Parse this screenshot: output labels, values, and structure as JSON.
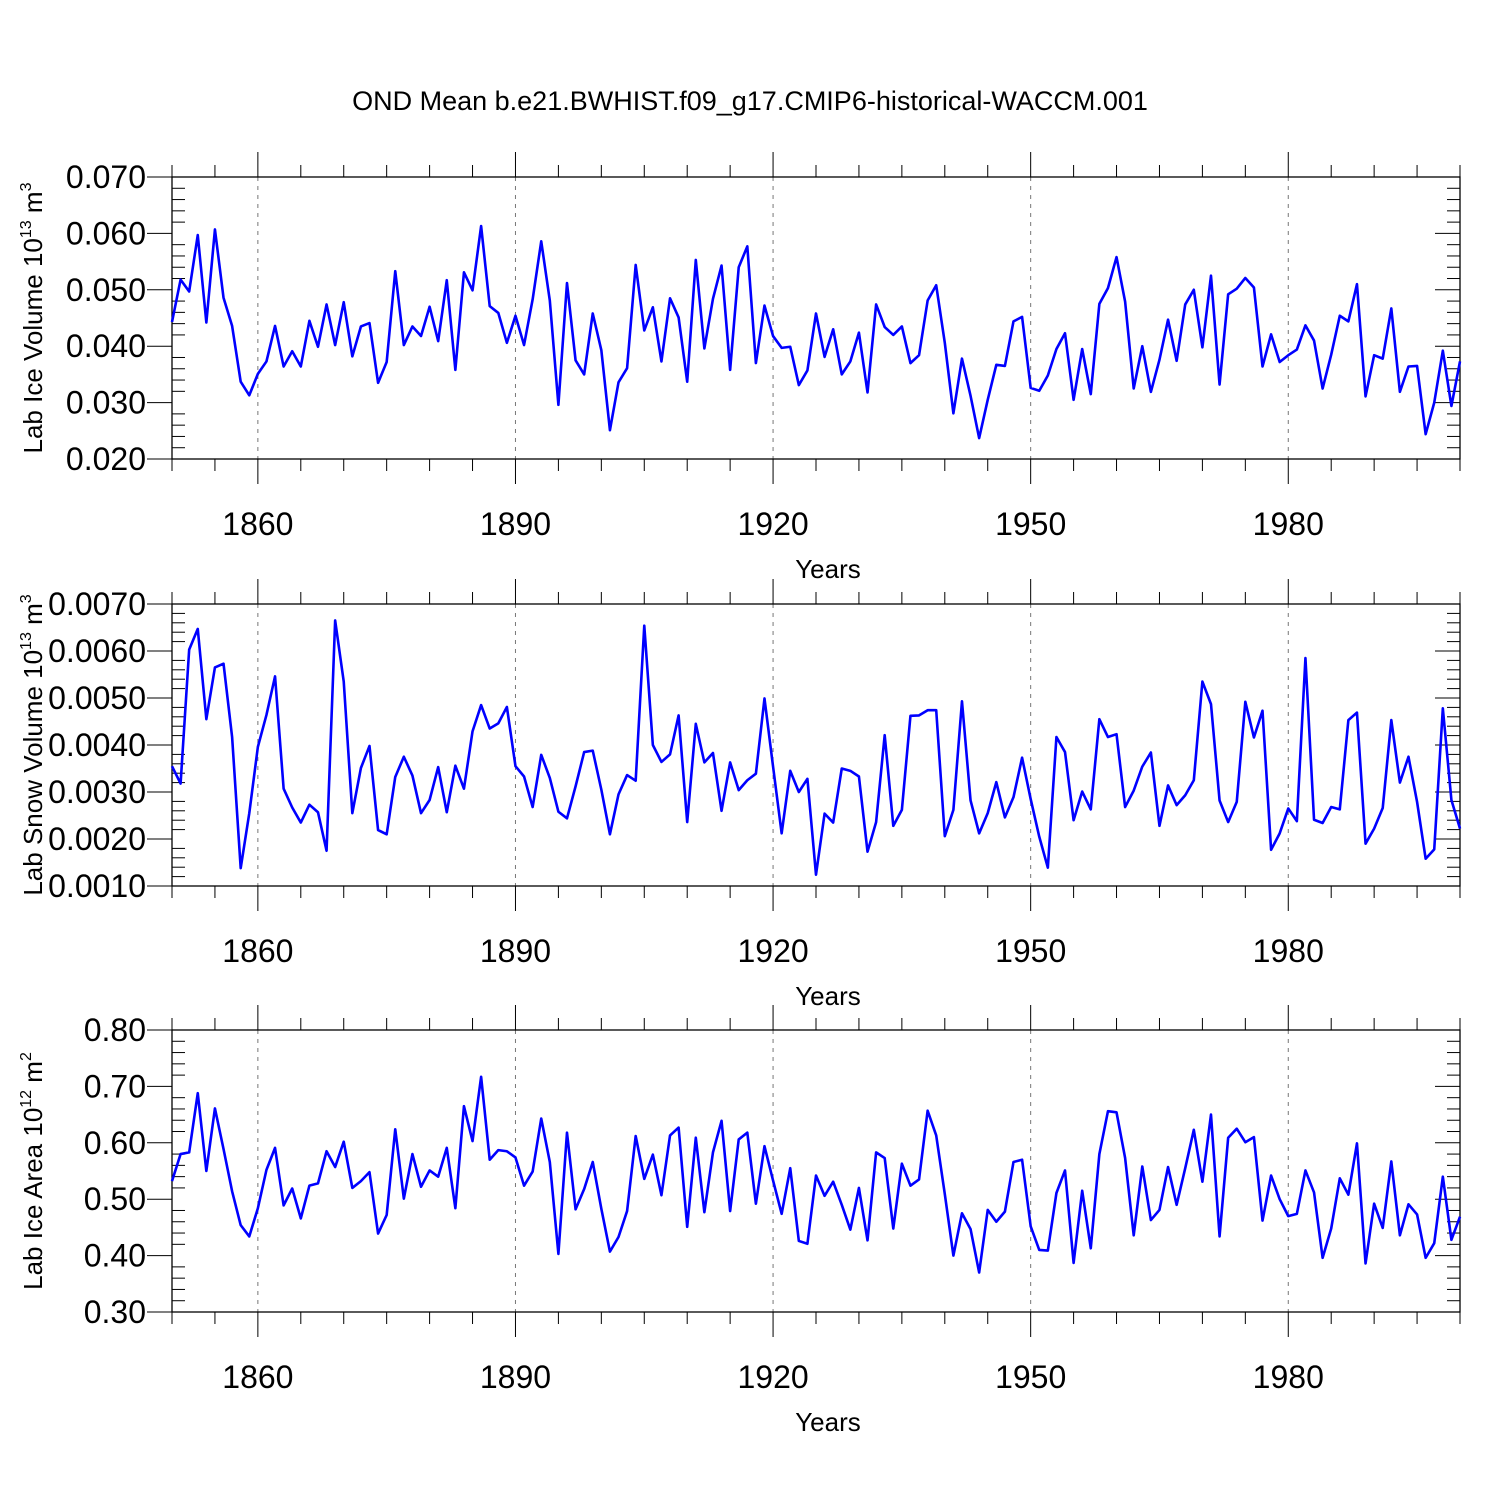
{
  "figure": {
    "title": "OND Mean b.e21.BWHIST.f09_g17.CMIP6-historical-WACCM.001",
    "line_color": "#0000ff"
  },
  "chart_data": [
    {
      "type": "line",
      "title": "",
      "xlabel": "Years",
      "ylabel": "Lab Ice Volume 10",
      "ylabel_exp": "13",
      "ylabel_unit": " m",
      "ylabel_unit_exp": "3",
      "xlim": [
        1850,
        2000
      ],
      "ylim": [
        0.02,
        0.07
      ],
      "xticks": [
        1860,
        1890,
        1920,
        1950,
        1980
      ],
      "yticks": [
        "0.020",
        "0.030",
        "0.040",
        "0.050",
        "0.060",
        "0.070"
      ],
      "x_start": 1850,
      "values": [
        0.0443,
        0.0518,
        0.0497,
        0.0597,
        0.0442,
        0.0607,
        0.0486,
        0.0436,
        0.0337,
        0.0313,
        0.0351,
        0.0373,
        0.0436,
        0.0364,
        0.0391,
        0.0364,
        0.0445,
        0.0399,
        0.0474,
        0.0402,
        0.0478,
        0.0382,
        0.0435,
        0.0441,
        0.0335,
        0.0372,
        0.0533,
        0.0402,
        0.0435,
        0.0418,
        0.047,
        0.0409,
        0.0517,
        0.0358,
        0.0531,
        0.0499,
        0.0613,
        0.0471,
        0.0459,
        0.0406,
        0.0454,
        0.0402,
        0.0483,
        0.0586,
        0.0481,
        0.0296,
        0.0512,
        0.0375,
        0.035,
        0.0458,
        0.0393,
        0.0251,
        0.0336,
        0.0361,
        0.0544,
        0.0428,
        0.0469,
        0.0373,
        0.0485,
        0.0451,
        0.0337,
        0.0553,
        0.0396,
        0.0484,
        0.0543,
        0.0358,
        0.054,
        0.0577,
        0.037,
        0.0472,
        0.0418,
        0.0397,
        0.0399,
        0.0331,
        0.0357,
        0.0458,
        0.0381,
        0.043,
        0.035,
        0.0373,
        0.0424,
        0.0318,
        0.0474,
        0.0434,
        0.042,
        0.0435,
        0.037,
        0.0384,
        0.0481,
        0.0508,
        0.0406,
        0.0281,
        0.0378,
        0.0312,
        0.0237,
        0.0305,
        0.0367,
        0.0365,
        0.0444,
        0.0452,
        0.0326,
        0.0321,
        0.0348,
        0.0395,
        0.0423,
        0.0305,
        0.0395,
        0.0315,
        0.0475,
        0.0503,
        0.0558,
        0.0479,
        0.0325,
        0.04,
        0.0319,
        0.0376,
        0.0447,
        0.0374,
        0.0474,
        0.05,
        0.0398,
        0.0525,
        0.0332,
        0.0492,
        0.0502,
        0.0521,
        0.0504,
        0.0364,
        0.0421,
        0.0372,
        0.0384,
        0.0394,
        0.0437,
        0.041,
        0.0325,
        0.0385,
        0.0454,
        0.0444,
        0.051,
        0.0311,
        0.0384,
        0.0378,
        0.0467,
        0.0319,
        0.0364,
        0.0365,
        0.0244,
        0.03,
        0.0392,
        0.0294,
        0.0373
      ]
    },
    {
      "type": "line",
      "title": "",
      "xlabel": "Years",
      "ylabel": "Lab Snow Volume 10",
      "ylabel_exp": "13",
      "ylabel_unit": " m",
      "ylabel_unit_exp": "3",
      "xlim": [
        1850,
        2000
      ],
      "ylim": [
        0.001,
        0.007
      ],
      "xticks": [
        1860,
        1890,
        1920,
        1950,
        1980
      ],
      "yticks": [
        "0.0010",
        "0.0020",
        "0.0030",
        "0.0040",
        "0.0050",
        "0.0060",
        "0.0070"
      ],
      "x_start": 1850,
      "values": [
        0.00355,
        0.00318,
        0.00603,
        0.00647,
        0.00455,
        0.00565,
        0.00573,
        0.00417,
        0.00138,
        0.00255,
        0.00396,
        0.00464,
        0.00546,
        0.00307,
        0.00267,
        0.00235,
        0.00273,
        0.00257,
        0.00175,
        0.00665,
        0.00535,
        0.00255,
        0.00351,
        0.00398,
        0.00219,
        0.0021,
        0.00332,
        0.00375,
        0.00335,
        0.00255,
        0.00283,
        0.00353,
        0.00257,
        0.00356,
        0.00307,
        0.00429,
        0.00485,
        0.00435,
        0.00446,
        0.00481,
        0.00355,
        0.00333,
        0.00268,
        0.00379,
        0.0033,
        0.00258,
        0.00244,
        0.00312,
        0.00385,
        0.00388,
        0.00305,
        0.0021,
        0.00295,
        0.00336,
        0.00324,
        0.00654,
        0.004,
        0.00364,
        0.0038,
        0.00463,
        0.00236,
        0.00445,
        0.00363,
        0.00383,
        0.0026,
        0.00363,
        0.00304,
        0.00325,
        0.00339,
        0.00499,
        0.00354,
        0.00212,
        0.00345,
        0.003,
        0.00328,
        0.00124,
        0.00254,
        0.00235,
        0.0035,
        0.00345,
        0.00333,
        0.00173,
        0.00236,
        0.00421,
        0.00228,
        0.00262,
        0.00462,
        0.00463,
        0.00474,
        0.00474,
        0.00206,
        0.00262,
        0.00493,
        0.00282,
        0.00212,
        0.00255,
        0.00321,
        0.00246,
        0.00289,
        0.00373,
        0.00285,
        0.00205,
        0.00139,
        0.00417,
        0.00385,
        0.0024,
        0.00301,
        0.00263,
        0.00455,
        0.00417,
        0.00423,
        0.00268,
        0.00303,
        0.00354,
        0.00384,
        0.00228,
        0.00314,
        0.00272,
        0.00293,
        0.00325,
        0.00535,
        0.00487,
        0.00282,
        0.00236,
        0.00279,
        0.00492,
        0.00416,
        0.00473,
        0.00177,
        0.00212,
        0.00265,
        0.00238,
        0.00585,
        0.00241,
        0.00234,
        0.00268,
        0.00263,
        0.00453,
        0.00469,
        0.0019,
        0.00222,
        0.00266,
        0.00453,
        0.0032,
        0.00375,
        0.00279,
        0.00158,
        0.00178,
        0.00478,
        0.00283,
        0.00222
      ]
    },
    {
      "type": "line",
      "title": "",
      "xlabel": "Years",
      "ylabel": "Lab Ice Area 10",
      "ylabel_exp": "12",
      "ylabel_unit": " m",
      "ylabel_unit_exp": "2",
      "xlim": [
        1850,
        2000
      ],
      "ylim": [
        0.3,
        0.8
      ],
      "xticks": [
        1860,
        1890,
        1920,
        1950,
        1980
      ],
      "yticks": [
        "0.30",
        "0.40",
        "0.50",
        "0.60",
        "0.70",
        "0.80"
      ],
      "x_start": 1850,
      "values": [
        0.532,
        0.58,
        0.583,
        0.688,
        0.55,
        0.661,
        0.589,
        0.514,
        0.454,
        0.434,
        0.484,
        0.552,
        0.591,
        0.489,
        0.519,
        0.466,
        0.524,
        0.528,
        0.585,
        0.557,
        0.602,
        0.52,
        0.532,
        0.548,
        0.439,
        0.472,
        0.624,
        0.501,
        0.58,
        0.522,
        0.551,
        0.54,
        0.591,
        0.484,
        0.665,
        0.603,
        0.717,
        0.57,
        0.587,
        0.585,
        0.574,
        0.524,
        0.549,
        0.643,
        0.566,
        0.403,
        0.618,
        0.482,
        0.518,
        0.566,
        0.483,
        0.407,
        0.433,
        0.479,
        0.612,
        0.536,
        0.579,
        0.507,
        0.613,
        0.627,
        0.451,
        0.609,
        0.477,
        0.583,
        0.639,
        0.479,
        0.606,
        0.618,
        0.492,
        0.594,
        0.533,
        0.474,
        0.555,
        0.426,
        0.421,
        0.542,
        0.506,
        0.531,
        0.49,
        0.446,
        0.52,
        0.427,
        0.583,
        0.573,
        0.448,
        0.563,
        0.524,
        0.535,
        0.657,
        0.613,
        0.509,
        0.4,
        0.475,
        0.447,
        0.37,
        0.481,
        0.46,
        0.478,
        0.566,
        0.57,
        0.452,
        0.41,
        0.409,
        0.511,
        0.551,
        0.387,
        0.515,
        0.413,
        0.58,
        0.656,
        0.654,
        0.573,
        0.436,
        0.558,
        0.463,
        0.481,
        0.557,
        0.49,
        0.555,
        0.623,
        0.531,
        0.65,
        0.434,
        0.609,
        0.625,
        0.601,
        0.61,
        0.462,
        0.542,
        0.5,
        0.47,
        0.474,
        0.551,
        0.512,
        0.396,
        0.448,
        0.537,
        0.508,
        0.599,
        0.386,
        0.492,
        0.449,
        0.567,
        0.436,
        0.491,
        0.473,
        0.396,
        0.422,
        0.54,
        0.428,
        0.469
      ]
    }
  ]
}
